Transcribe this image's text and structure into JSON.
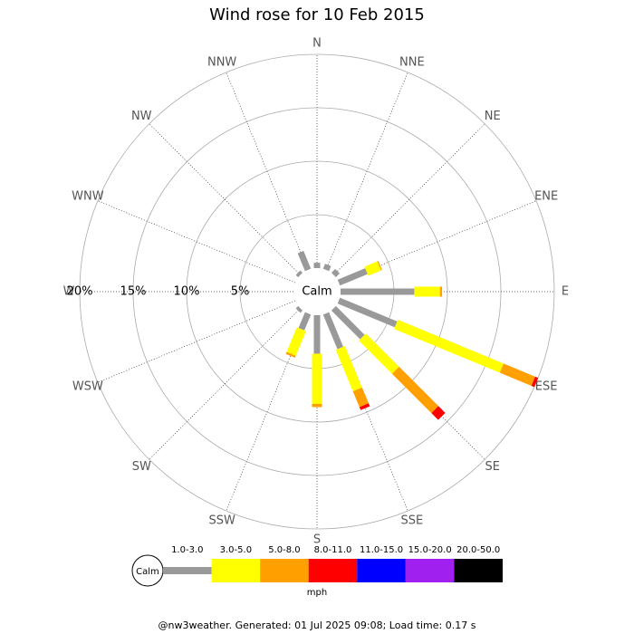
{
  "chart_data": {
    "type": "windrose",
    "title": "Wind rose for 10 Feb 2015",
    "categories": [
      "N",
      "NNE",
      "NE",
      "ENE",
      "E",
      "ESE",
      "SE",
      "SSE",
      "S",
      "SSW",
      "SW",
      "WSW",
      "W",
      "WNW",
      "NW",
      "NNW"
    ],
    "calm_label": "Calm",
    "rlim": [
      0,
      20
    ],
    "rticks": [
      {
        "value": 5,
        "label": "5%"
      },
      {
        "value": 10,
        "label": "10%"
      },
      {
        "value": 15,
        "label": "15%"
      },
      {
        "value": 20,
        "label": "20%"
      }
    ],
    "unit": "mph",
    "series": [
      {
        "name": "1.0-3.0",
        "color": "#999999",
        "values": [
          0.5,
          0.5,
          0.5,
          2.8,
          6.9,
          5.8,
          3.8,
          3.5,
          3.6,
          1.6,
          0.3,
          0,
          0,
          0,
          0.3,
          1.8
        ]
      },
      {
        "name": "3.0-5.0",
        "color": "#ffff00",
        "values": [
          0,
          0,
          0,
          1.3,
          2.4,
          10.7,
          4.4,
          4.2,
          4.7,
          2.5,
          0,
          0,
          0,
          0,
          0,
          0
        ]
      },
      {
        "name": "5.0-8.0",
        "color": "#ff9f00",
        "values": [
          0,
          0,
          0,
          0.1,
          0.2,
          3.2,
          5.2,
          1.6,
          0.3,
          0.2,
          0,
          0,
          0,
          0,
          0,
          0
        ]
      },
      {
        "name": "8.0-11.0",
        "color": "#ff0000",
        "values": [
          0,
          0,
          0,
          0,
          0,
          0.3,
          0.9,
          0.3,
          0,
          0,
          0,
          0,
          0,
          0,
          0,
          0
        ]
      },
      {
        "name": "11.0-15.0",
        "color": "#0000ff",
        "values": [
          0,
          0,
          0,
          0,
          0,
          0,
          0,
          0,
          0,
          0,
          0,
          0,
          0,
          0,
          0,
          0
        ]
      },
      {
        "name": "15.0-20.0",
        "color": "#a020f0",
        "values": [
          0,
          0,
          0,
          0,
          0,
          0,
          0,
          0,
          0,
          0,
          0,
          0,
          0,
          0,
          0,
          0
        ]
      },
      {
        "name": "20.0-50.0",
        "color": "#000000",
        "values": [
          0,
          0,
          0,
          0,
          0,
          0,
          0,
          0,
          0,
          0,
          0,
          0,
          0,
          0,
          0,
          0
        ]
      }
    ],
    "footer": "@nw3weather. Generated: 01 Jul 2025 09:08; Load time: 0.17 s"
  }
}
